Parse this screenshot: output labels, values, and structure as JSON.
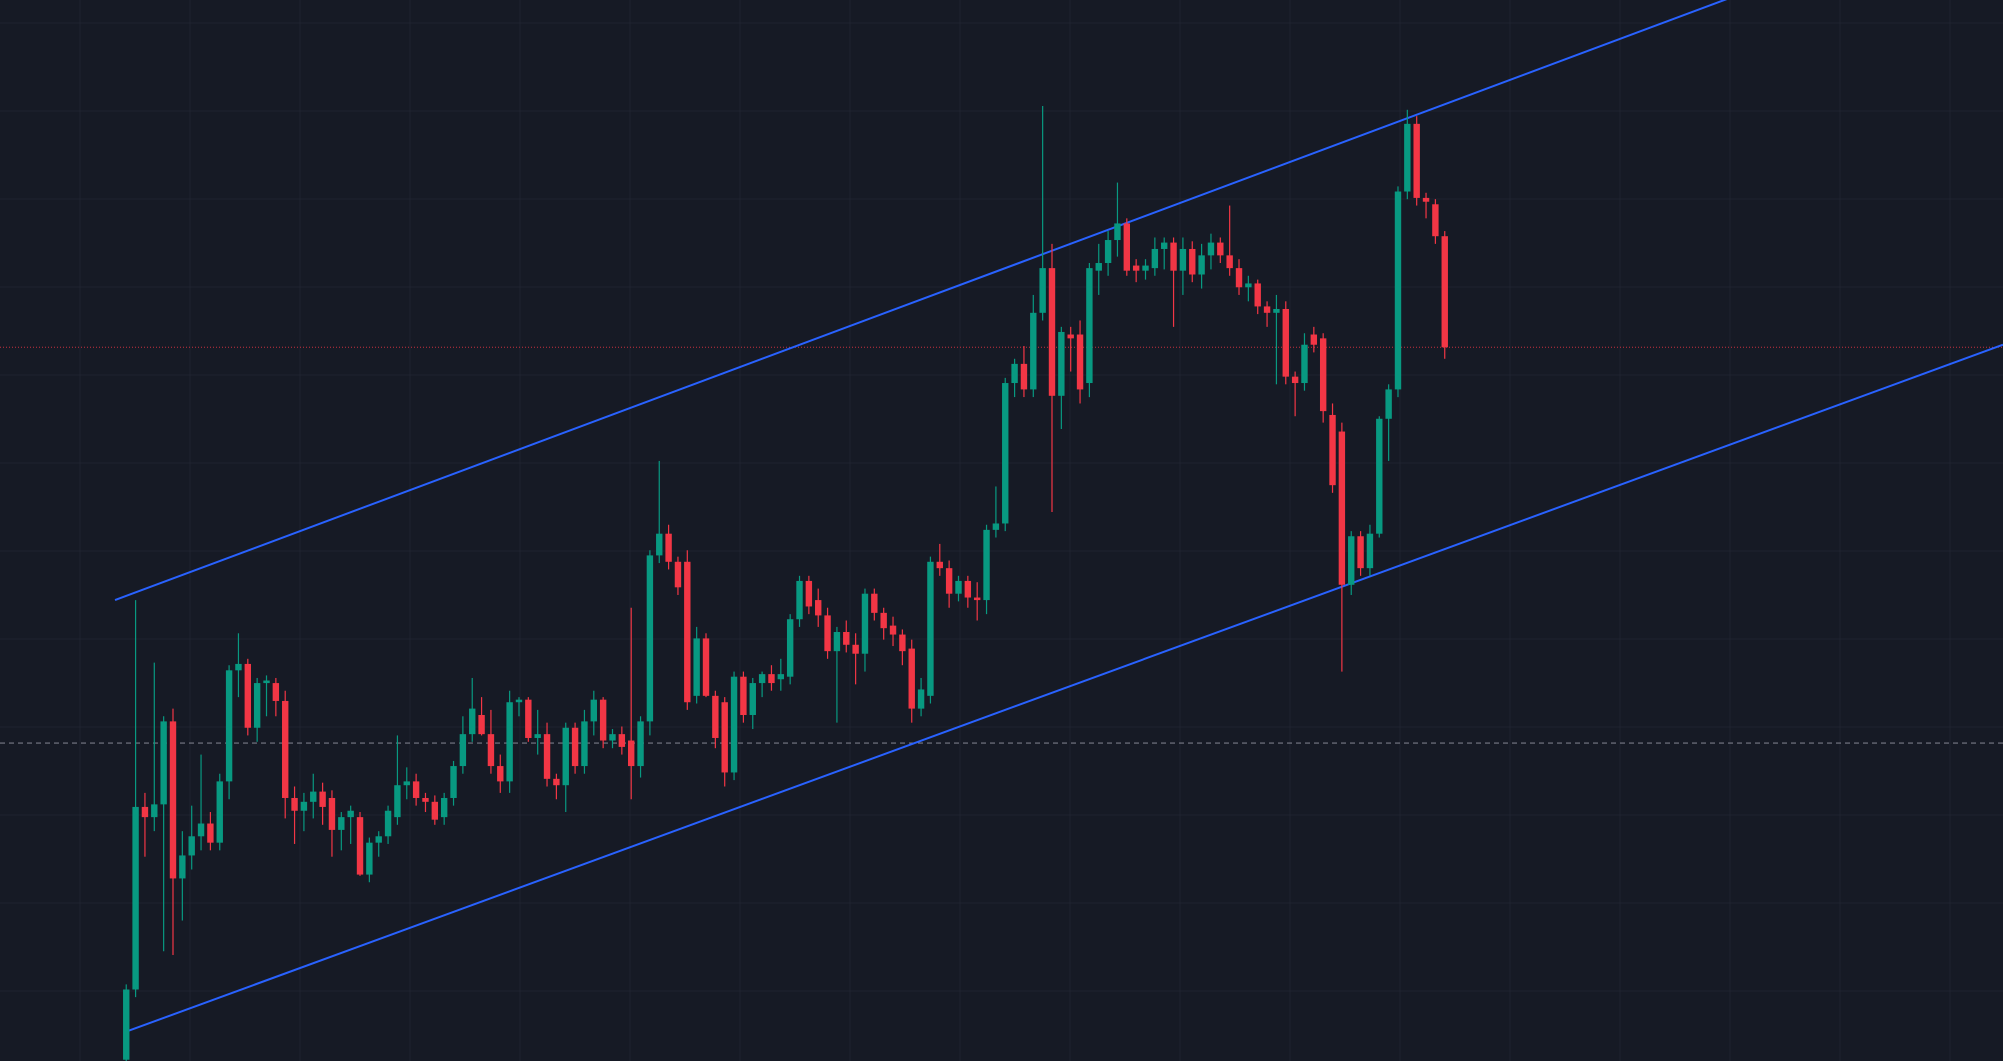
{
  "chart_data": {
    "type": "candlestick",
    "up_color": "#089981",
    "down_color": "#f23645",
    "background": "#161a25",
    "line_color": "#2962ff",
    "ylim": [
      0,
      831
    ],
    "xlim": [
      -13.5,
      200.7
    ],
    "ohlc": [
      [
        1,
        60,
        0,
        56
      ],
      [
        56,
        361,
        50,
        199
      ],
      [
        199,
        210,
        160,
        191
      ],
      [
        191,
        312,
        180,
        201
      ],
      [
        201,
        270,
        86,
        266
      ],
      [
        266,
        276,
        83,
        143
      ],
      [
        143,
        180,
        110,
        161
      ],
      [
        161,
        200,
        150,
        176
      ],
      [
        176,
        240,
        165,
        186
      ],
      [
        186,
        195,
        165,
        171
      ],
      [
        171,
        225,
        165,
        219
      ],
      [
        219,
        310,
        205,
        306
      ],
      [
        306,
        335,
        285,
        311
      ],
      [
        311,
        315,
        255,
        261
      ],
      [
        261,
        300,
        250,
        296
      ],
      [
        296,
        302,
        270,
        298
      ],
      [
        296,
        300,
        270,
        282
      ],
      [
        282,
        290,
        190,
        206
      ],
      [
        206,
        215,
        170,
        196
      ],
      [
        196,
        210,
        180,
        203
      ],
      [
        203,
        225,
        190,
        211
      ],
      [
        211,
        218,
        185,
        199
      ],
      [
        206,
        212,
        160,
        181
      ],
      [
        181,
        195,
        165,
        191
      ],
      [
        191,
        200,
        170,
        196
      ],
      [
        191,
        195,
        145,
        146
      ],
      [
        146,
        175,
        140,
        171
      ],
      [
        171,
        180,
        160,
        176
      ],
      [
        176,
        200,
        170,
        196
      ],
      [
        191,
        255,
        185,
        216
      ],
      [
        216,
        230,
        205,
        219
      ],
      [
        219,
        225,
        200,
        206
      ],
      [
        206,
        210,
        195,
        203
      ],
      [
        203,
        208,
        185,
        189
      ],
      [
        191,
        210,
        185,
        206
      ],
      [
        206,
        235,
        200,
        231
      ],
      [
        231,
        270,
        225,
        256
      ],
      [
        256,
        300,
        250,
        276
      ],
      [
        271,
        285,
        255,
        256
      ],
      [
        256,
        275,
        225,
        231
      ],
      [
        231,
        240,
        210,
        219
      ],
      [
        219,
        290,
        210,
        281
      ],
      [
        281,
        285,
        270,
        283
      ],
      [
        283,
        285,
        250,
        253
      ],
      [
        253,
        275,
        240,
        256
      ],
      [
        256,
        265,
        215,
        221
      ],
      [
        221,
        225,
        205,
        216
      ],
      [
        216,
        265,
        195,
        261
      ],
      [
        261,
        265,
        225,
        231
      ],
      [
        231,
        275,
        225,
        266
      ],
      [
        266,
        290,
        255,
        283
      ],
      [
        283,
        285,
        245,
        251
      ],
      [
        251,
        260,
        245,
        256
      ],
      [
        256,
        262,
        240,
        246
      ],
      [
        251,
        355,
        205,
        231
      ],
      [
        231,
        270,
        222,
        266
      ],
      [
        266,
        400,
        255,
        396
      ],
      [
        396,
        470,
        390,
        413
      ],
      [
        413,
        420,
        385,
        391
      ],
      [
        391,
        395,
        365,
        371
      ],
      [
        391,
        400,
        275,
        281
      ],
      [
        286,
        340,
        280,
        331
      ],
      [
        331,
        335,
        285,
        286
      ],
      [
        286,
        290,
        245,
        253
      ],
      [
        281,
        285,
        215,
        226
      ],
      [
        226,
        305,
        220,
        301
      ],
      [
        301,
        305,
        265,
        271
      ],
      [
        271,
        300,
        260,
        296
      ],
      [
        296,
        305,
        285,
        303
      ],
      [
        303,
        310,
        290,
        296
      ],
      [
        299,
        315,
        290,
        303
      ],
      [
        301,
        350,
        295,
        346
      ],
      [
        346,
        380,
        340,
        376
      ],
      [
        376,
        380,
        350,
        356
      ],
      [
        361,
        370,
        340,
        349
      ],
      [
        349,
        355,
        315,
        321
      ],
      [
        321,
        340,
        265,
        336
      ],
      [
        336,
        345,
        320,
        326
      ],
      [
        326,
        335,
        295,
        319
      ],
      [
        319,
        370,
        305,
        366
      ],
      [
        366,
        370,
        345,
        351
      ],
      [
        351,
        355,
        330,
        339
      ],
      [
        341,
        348,
        325,
        334
      ],
      [
        334,
        338,
        310,
        321
      ],
      [
        323,
        330,
        265,
        276
      ],
      [
        276,
        300,
        270,
        291
      ],
      [
        286,
        395,
        280,
        391
      ],
      [
        391,
        405,
        380,
        386
      ],
      [
        386,
        392,
        355,
        366
      ],
      [
        366,
        380,
        360,
        376
      ],
      [
        376,
        380,
        355,
        363
      ],
      [
        363,
        375,
        345,
        361
      ],
      [
        361,
        420,
        350,
        416
      ],
      [
        416,
        450,
        410,
        421
      ],
      [
        421,
        535,
        415,
        531
      ],
      [
        531,
        550,
        520,
        546
      ],
      [
        546,
        560,
        520,
        526
      ],
      [
        526,
        600,
        520,
        586
      ],
      [
        586,
        748,
        580,
        621
      ],
      [
        621,
        640,
        430,
        521
      ],
      [
        521,
        575,
        495,
        571
      ],
      [
        569,
        575,
        540,
        566
      ],
      [
        569,
        580,
        515,
        526
      ],
      [
        531,
        625,
        520,
        621
      ],
      [
        619,
        640,
        600,
        625
      ],
      [
        625,
        650,
        615,
        643
      ],
      [
        643,
        688,
        630,
        656
      ],
      [
        656,
        660,
        615,
        619
      ],
      [
        623,
        628,
        610,
        619
      ],
      [
        619,
        628,
        612,
        623
      ],
      [
        621,
        645,
        615,
        636
      ],
      [
        636,
        645,
        620,
        641
      ],
      [
        641,
        645,
        575,
        619
      ],
      [
        619,
        645,
        600,
        636
      ],
      [
        636,
        642,
        610,
        616
      ],
      [
        616,
        640,
        605,
        631
      ],
      [
        631,
        648,
        620,
        641
      ],
      [
        641,
        645,
        625,
        631
      ],
      [
        631,
        670,
        615,
        621
      ],
      [
        621,
        628,
        600,
        606
      ],
      [
        606,
        615,
        595,
        609
      ],
      [
        609,
        612,
        585,
        591
      ],
      [
        591,
        595,
        575,
        586
      ],
      [
        586,
        600,
        530,
        589
      ],
      [
        589,
        595,
        530,
        536
      ],
      [
        536,
        540,
        505,
        531
      ],
      [
        531,
        570,
        525,
        561
      ],
      [
        569,
        575,
        555,
        561
      ],
      [
        566,
        570,
        500,
        509
      ],
      [
        506,
        515,
        445,
        451
      ],
      [
        493,
        500,
        305,
        373
      ],
      [
        373,
        415,
        365,
        411
      ],
      [
        411,
        415,
        380,
        386
      ],
      [
        386,
        420,
        380,
        413
      ],
      [
        413,
        505,
        410,
        503
      ],
      [
        503,
        530,
        470,
        526
      ],
      [
        526,
        685,
        520,
        681
      ],
      [
        681,
        745,
        675,
        734
      ],
      [
        734,
        740,
        670,
        676
      ],
      [
        676,
        680,
        660,
        673
      ],
      [
        671,
        675,
        640,
        646
      ],
      [
        646,
        650,
        550,
        559
      ]
    ],
    "hline": 249,
    "channel": [
      [
        [
          0,
          23
        ],
        [
          200.7,
          561
        ]
      ],
      [
        [
          -1.2,
          361
        ],
        [
          170.9,
          831
        ]
      ]
    ]
  }
}
